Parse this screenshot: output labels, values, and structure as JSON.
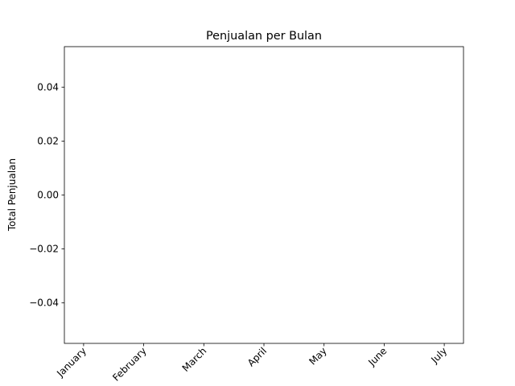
{
  "chart_data": {
    "type": "bar",
    "title": "Penjualan per Bulan",
    "ylabel": "Total Penjualan",
    "categories": [
      "January",
      "February",
      "March",
      "April",
      "May",
      "June",
      "July"
    ],
    "values": [
      0,
      0,
      0,
      0,
      0,
      0,
      0
    ],
    "color": "#1f77b4",
    "ylim": [
      -0.055,
      0.055
    ],
    "yticks": [
      {
        "value": -0.04,
        "label": "−0.04"
      },
      {
        "value": -0.02,
        "label": "−0.02"
      },
      {
        "value": 0,
        "label": "0.00"
      },
      {
        "value": 0.02,
        "label": "0.02"
      },
      {
        "value": 0.04,
        "label": "0.04"
      }
    ],
    "grid": false
  }
}
